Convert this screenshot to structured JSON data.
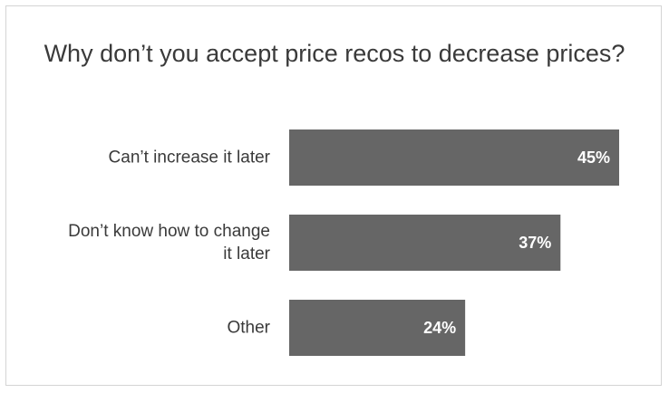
{
  "chart_data": {
    "type": "bar",
    "orientation": "horizontal",
    "title": "Why don’t you accept price recos to decrease prices?",
    "categories": [
      [
        "Can’t increase it later"
      ],
      [
        "Don’t know how to change",
        "it later"
      ],
      [
        "Other"
      ]
    ],
    "values": [
      45,
      37,
      24
    ],
    "value_labels": [
      "45%",
      "37%",
      "24%"
    ],
    "xlim": [
      0,
      45
    ],
    "unit": "%",
    "bar_color": "#666666",
    "grid": false,
    "legend": "none"
  }
}
